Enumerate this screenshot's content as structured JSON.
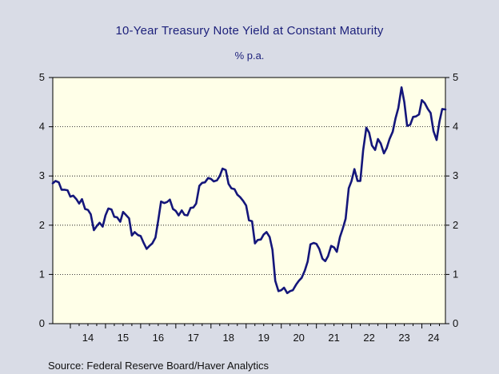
{
  "title": "10-Year Treasury Note Yield at Constant Maturity",
  "subtitle": "% p.a.",
  "source": "Source:  Federal Reserve Board/Haver Analytics",
  "colors": {
    "background": "#d9dce6",
    "plot_area": "#ffffe8",
    "line": "#14167a"
  },
  "chart_data": {
    "type": "line",
    "title": "10-Year Treasury Note Yield at Constant Maturity",
    "subtitle": "% p.a.",
    "ylabel": "",
    "xlabel": "",
    "xlim": [
      2013.5,
      2024.67
    ],
    "ylim": [
      0,
      5
    ],
    "y_ticks": [
      0,
      1,
      2,
      3,
      4,
      5
    ],
    "y_axis_both_sides": true,
    "x_ticks": [
      "14",
      "15",
      "16",
      "17",
      "18",
      "19",
      "20",
      "21",
      "22",
      "23",
      "24"
    ],
    "gridlines": "horizontal dotted",
    "series": [
      {
        "x": [
          2013.5,
          2013.58,
          2013.67,
          2013.75,
          2013.83,
          2013.92,
          2014.0,
          2014.08,
          2014.17,
          2014.25,
          2014.33,
          2014.42,
          2014.5,
          2014.58,
          2014.67,
          2014.75,
          2014.83,
          2014.92,
          2015.0,
          2015.08,
          2015.17,
          2015.25,
          2015.33,
          2015.42,
          2015.5,
          2015.58,
          2015.67,
          2015.75,
          2015.83,
          2015.92,
          2016.0,
          2016.08,
          2016.17,
          2016.25,
          2016.33,
          2016.42,
          2016.5,
          2016.58,
          2016.67,
          2016.75,
          2016.83,
          2016.92,
          2017.0,
          2017.08,
          2017.17,
          2017.25,
          2017.33,
          2017.42,
          2017.5,
          2017.58,
          2017.67,
          2017.75,
          2017.83,
          2017.92,
          2018.0,
          2018.08,
          2018.17,
          2018.25,
          2018.33,
          2018.42,
          2018.5,
          2018.58,
          2018.67,
          2018.75,
          2018.83,
          2018.92,
          2019.0,
          2019.08,
          2019.17,
          2019.25,
          2019.33,
          2019.42,
          2019.5,
          2019.58,
          2019.67,
          2019.75,
          2019.83,
          2019.92,
          2020.0,
          2020.08,
          2020.17,
          2020.25,
          2020.33,
          2020.42,
          2020.5,
          2020.58,
          2020.67,
          2020.75,
          2020.83,
          2020.92,
          2021.0,
          2021.08,
          2021.17,
          2021.25,
          2021.33,
          2021.42,
          2021.5,
          2021.58,
          2021.67,
          2021.75,
          2021.83,
          2021.92,
          2022.0,
          2022.08,
          2022.17,
          2022.25,
          2022.33,
          2022.42,
          2022.5,
          2022.58,
          2022.67,
          2022.75,
          2022.83,
          2022.92,
          2023.0,
          2023.08,
          2023.17,
          2023.25,
          2023.33,
          2023.42,
          2023.5,
          2023.58,
          2023.67,
          2023.75,
          2023.83,
          2023.92,
          2024.0,
          2024.08,
          2024.17,
          2024.25,
          2024.33,
          2024.42,
          2024.5,
          2024.58,
          2024.67
        ],
        "y": [
          2.85,
          2.9,
          2.87,
          2.72,
          2.72,
          2.71,
          2.58,
          2.6,
          2.53,
          2.44,
          2.53,
          2.33,
          2.31,
          2.22,
          1.9,
          1.98,
          2.05,
          1.97,
          2.2,
          2.34,
          2.32,
          2.17,
          2.16,
          2.07,
          2.27,
          2.21,
          2.14,
          1.79,
          1.86,
          1.8,
          1.78,
          1.65,
          1.52,
          1.58,
          1.63,
          1.75,
          2.1,
          2.48,
          2.45,
          2.47,
          2.52,
          2.33,
          2.29,
          2.2,
          2.3,
          2.21,
          2.2,
          2.35,
          2.36,
          2.44,
          2.8,
          2.86,
          2.87,
          2.96,
          2.94,
          2.89,
          2.91,
          3.0,
          3.15,
          3.12,
          2.84,
          2.75,
          2.73,
          2.62,
          2.57,
          2.49,
          2.4,
          2.1,
          2.08,
          1.63,
          1.7,
          1.71,
          1.81,
          1.86,
          1.76,
          1.5,
          0.87,
          0.66,
          0.68,
          0.73,
          0.62,
          0.66,
          0.68,
          0.79,
          0.87,
          0.93,
          1.08,
          1.26,
          1.61,
          1.64,
          1.62,
          1.52,
          1.32,
          1.27,
          1.37,
          1.58,
          1.55,
          1.46,
          1.76,
          1.93,
          2.13,
          2.75,
          2.9,
          3.14,
          2.9,
          2.9,
          3.52,
          3.98,
          3.88,
          3.62,
          3.53,
          3.75,
          3.66,
          3.46,
          3.57,
          3.75,
          3.9,
          4.17,
          4.38,
          4.8,
          4.5,
          4.02,
          4.04,
          4.2,
          4.21,
          4.25,
          4.54,
          4.48,
          4.36,
          4.28,
          3.91,
          3.73,
          4.1,
          4.36,
          4.35
        ]
      }
    ]
  }
}
